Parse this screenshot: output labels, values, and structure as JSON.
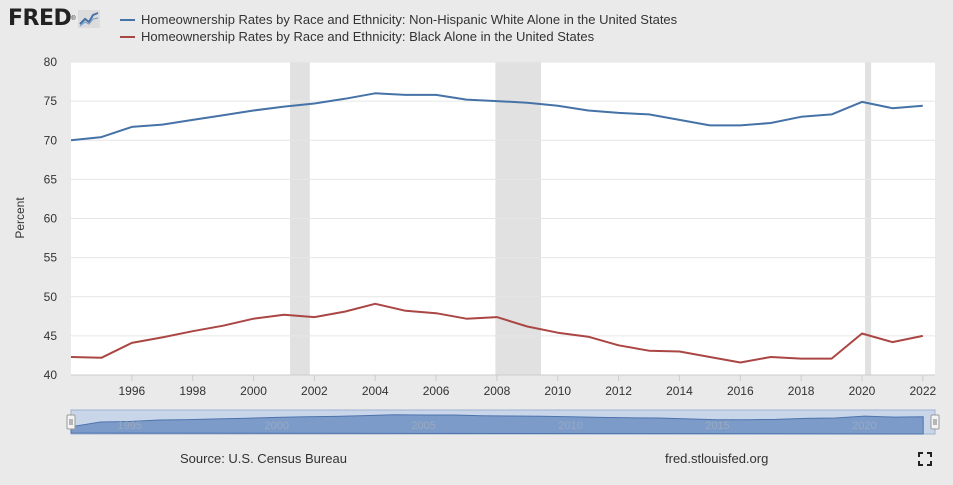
{
  "header": {
    "logo_text": "FRED",
    "legend": [
      {
        "label": "Homeownership Rates by Race and Ethnicity: Non-Hispanic White Alone in the United States",
        "color": "#4572a7"
      },
      {
        "label": "Homeownership Rates by Race and Ethnicity: Black Alone in the United States",
        "color": "#aa4643"
      }
    ]
  },
  "footer": {
    "source": "Source: U.S. Census Bureau",
    "url": "fred.stlouisfed.org"
  },
  "icons": {
    "logo": "fred-chart-icon",
    "fullscreen": "fullscreen-icon"
  },
  "chart_data": {
    "type": "line",
    "ylabel": "Percent",
    "ylim": [
      40,
      80
    ],
    "yticks": [
      40,
      45,
      50,
      55,
      60,
      65,
      70,
      75,
      80
    ],
    "xlim": [
      1994,
      2022.4
    ],
    "xticks": [
      1996,
      1998,
      2000,
      2002,
      2004,
      2006,
      2008,
      2010,
      2012,
      2014,
      2016,
      2018,
      2020,
      2022
    ],
    "x": [
      1994,
      1995,
      1996,
      1997,
      1998,
      1999,
      2000,
      2001,
      2002,
      2003,
      2004,
      2005,
      2006,
      2007,
      2008,
      2009,
      2010,
      2011,
      2012,
      2013,
      2014,
      2015,
      2016,
      2017,
      2018,
      2019,
      2020,
      2021,
      2022
    ],
    "series": [
      {
        "name": "Homeownership Rates by Race and Ethnicity: Non-Hispanic White Alone in the United States",
        "color": "#4572a7",
        "values": [
          70.0,
          70.4,
          71.7,
          72.0,
          72.6,
          73.2,
          73.8,
          74.3,
          74.7,
          75.3,
          76.0,
          75.8,
          75.8,
          75.2,
          75.0,
          74.8,
          74.4,
          73.8,
          73.5,
          73.3,
          72.6,
          71.9,
          71.9,
          72.2,
          73.0,
          73.3,
          74.9,
          74.1,
          74.4
        ]
      },
      {
        "name": "Homeownership Rates by Race and Ethnicity: Black Alone in the United States",
        "color": "#aa4643",
        "values": [
          42.3,
          42.2,
          44.1,
          44.8,
          45.6,
          46.3,
          47.2,
          47.7,
          47.4,
          48.1,
          49.1,
          48.2,
          47.9,
          47.2,
          47.4,
          46.2,
          45.4,
          44.9,
          43.8,
          43.1,
          43.0,
          42.3,
          41.6,
          42.3,
          42.1,
          42.1,
          45.3,
          44.2,
          45.0
        ]
      }
    ],
    "recessions": [
      [
        2001.2,
        2001.85
      ],
      [
        2007.95,
        2009.45
      ],
      [
        2020.1,
        2020.3
      ]
    ],
    "navigator": {
      "xlim": [
        1993,
        2022.4
      ],
      "ticks": [
        1995,
        2000,
        2005,
        2010,
        2015,
        2020
      ]
    },
    "grid": true,
    "legend_position": "top-left"
  }
}
